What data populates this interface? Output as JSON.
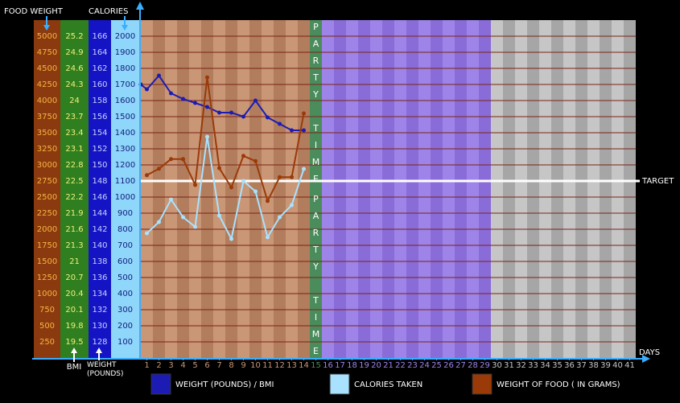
{
  "chart_data": {
    "type": "line",
    "x_label": "DAYS",
    "xlim": [
      0.5,
      41.5
    ],
    "xticks": [
      1,
      2,
      3,
      4,
      5,
      6,
      7,
      8,
      9,
      10,
      11,
      12,
      13,
      14,
      15,
      16,
      17,
      18,
      19,
      20,
      21,
      22,
      23,
      24,
      25,
      26,
      27,
      28,
      29,
      30,
      31,
      32,
      33,
      34,
      35,
      36,
      37,
      38,
      39,
      40,
      41
    ],
    "y_label": "CALORIES",
    "ylim": [
      0,
      2000
    ],
    "yticks": [
      100,
      200,
      300,
      400,
      500,
      600,
      700,
      800,
      900,
      1000,
      1100,
      1200,
      1300,
      1400,
      1500,
      1600,
      1700,
      1800,
      1900,
      2000
    ],
    "food_axis": {
      "label": "FOOD WEIGHT",
      "lim": [
        0,
        5000
      ],
      "ticks": [
        250,
        500,
        750,
        1000,
        1250,
        1500,
        1750,
        2000,
        2250,
        2500,
        2750,
        3000,
        3250,
        3500,
        3750,
        4000,
        4250,
        4500,
        4750,
        5000
      ]
    },
    "bmi_axis": {
      "label": "BMI",
      "lim": [
        19.2,
        25.2
      ],
      "ticks": [
        19.5,
        19.8,
        20.1,
        20.4,
        20.7,
        21,
        21.3,
        21.6,
        21.9,
        22.2,
        22.5,
        22.8,
        23.1,
        23.4,
        23.7,
        24,
        24.3,
        24.6,
        24.9,
        25.2
      ]
    },
    "weight_axis": {
      "label": "WEIGHT (POUNDS)",
      "lim": [
        126,
        166
      ],
      "ticks": [
        128,
        130,
        132,
        134,
        136,
        138,
        140,
        142,
        144,
        146,
        148,
        150,
        152,
        154,
        156,
        158,
        160,
        162,
        164,
        166
      ]
    },
    "grid": true,
    "bands": [
      {
        "from": 1,
        "to": 14,
        "colors": [
          "#c99676",
          "#b27d5d"
        ]
      },
      {
        "from": 15,
        "to": 15,
        "colors": [
          "#4a8c5c"
        ],
        "label": "PARTY TIME"
      },
      {
        "from": 16,
        "to": 29,
        "colors": [
          "#9e84e8",
          "#8a6cd9"
        ]
      },
      {
        "from": 30,
        "to": 41,
        "colors": [
          "#c6c6c6",
          "#a6a6a6"
        ]
      }
    ],
    "target": {
      "label": "TARGET",
      "value": 1100
    },
    "series": [
      {
        "name": "WEIGHT (POUNDS) / BMI",
        "color": "#1c1cb4",
        "axis": "weight_axis",
        "x": [
          0.5,
          1,
          2,
          3,
          4,
          5,
          6,
          7,
          8,
          9,
          10,
          11,
          12,
          13,
          14
        ],
        "values": [
          160,
          159.4,
          161.1,
          158.9,
          158.2,
          157.7,
          157.2,
          156.5,
          156.5,
          156,
          158,
          155.9,
          155.1,
          154.3,
          154.3
        ]
      },
      {
        "name": "CALORIES TAKEN",
        "color": "#a8e2ff",
        "axis": "y",
        "x": [
          1,
          2,
          3,
          4,
          5,
          6,
          7,
          8,
          9,
          10,
          11,
          12,
          13,
          14
        ],
        "values": [
          775,
          845,
          985,
          875,
          815,
          1375,
          885,
          740,
          1100,
          1035,
          750,
          875,
          950,
          1175
        ]
      },
      {
        "name": "WEIGHT OF FOOD ( IN GRAMS)",
        "color": "#9a3a08",
        "axis": "food_axis",
        "x": [
          1,
          2,
          3,
          4,
          5,
          6,
          7,
          8,
          9,
          10,
          11,
          12,
          13,
          14
        ],
        "values": [
          2840,
          2940,
          3090,
          3090,
          2690,
          4360,
          2950,
          2650,
          3140,
          3060,
          2440,
          2810,
          2810,
          3800
        ]
      }
    ]
  }
}
